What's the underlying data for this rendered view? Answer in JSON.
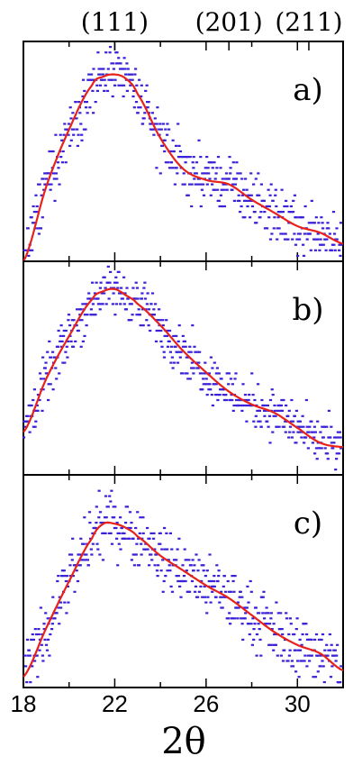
{
  "chart_data": {
    "type": "scatter",
    "xlabel": "2θ",
    "xlim": [
      18,
      32
    ],
    "x_ticks": [
      18,
      22,
      26,
      30
    ],
    "x_tick_labels": [
      "18",
      "22",
      "26",
      "30"
    ],
    "peak_markers": [
      {
        "label": "(111)",
        "x": 22
      },
      {
        "label": "(201)",
        "x": 27
      },
      {
        "label": "(211)",
        "x": 30.5
      }
    ],
    "panels": [
      {
        "label": "a)",
        "fit_x": [
          18,
          19,
          20,
          21,
          21.5,
          22,
          22.5,
          23,
          24,
          25,
          26,
          27,
          28,
          29,
          30,
          31,
          32
        ],
        "fit_y": [
          0.0,
          0.34,
          0.6,
          0.8,
          0.84,
          0.85,
          0.83,
          0.76,
          0.56,
          0.42,
          0.37,
          0.35,
          0.28,
          0.22,
          0.16,
          0.13,
          0.08
        ],
        "noise": 0.11
      },
      {
        "label": "b)",
        "fit_x": [
          18,
          19,
          20,
          21,
          21.5,
          22,
          22.5,
          23,
          24,
          25,
          26,
          27,
          28,
          29,
          30,
          31,
          32
        ],
        "fit_y": [
          0.2,
          0.45,
          0.65,
          0.82,
          0.86,
          0.87,
          0.84,
          0.8,
          0.7,
          0.58,
          0.48,
          0.39,
          0.33,
          0.29,
          0.22,
          0.15,
          0.13
        ],
        "noise": 0.1
      },
      {
        "label": "c)",
        "fit_x": [
          18,
          19,
          20,
          21,
          21.5,
          22,
          22.5,
          23,
          24,
          25,
          26,
          27,
          28,
          29,
          30,
          31,
          32
        ],
        "fit_y": [
          0.05,
          0.28,
          0.5,
          0.7,
          0.77,
          0.77,
          0.75,
          0.71,
          0.62,
          0.55,
          0.48,
          0.42,
          0.34,
          0.26,
          0.2,
          0.16,
          0.08
        ],
        "noise": 0.12
      }
    ],
    "marker_color": "#3a22d8",
    "fit_color": "#e8211b",
    "grid": false,
    "legend": "none"
  }
}
